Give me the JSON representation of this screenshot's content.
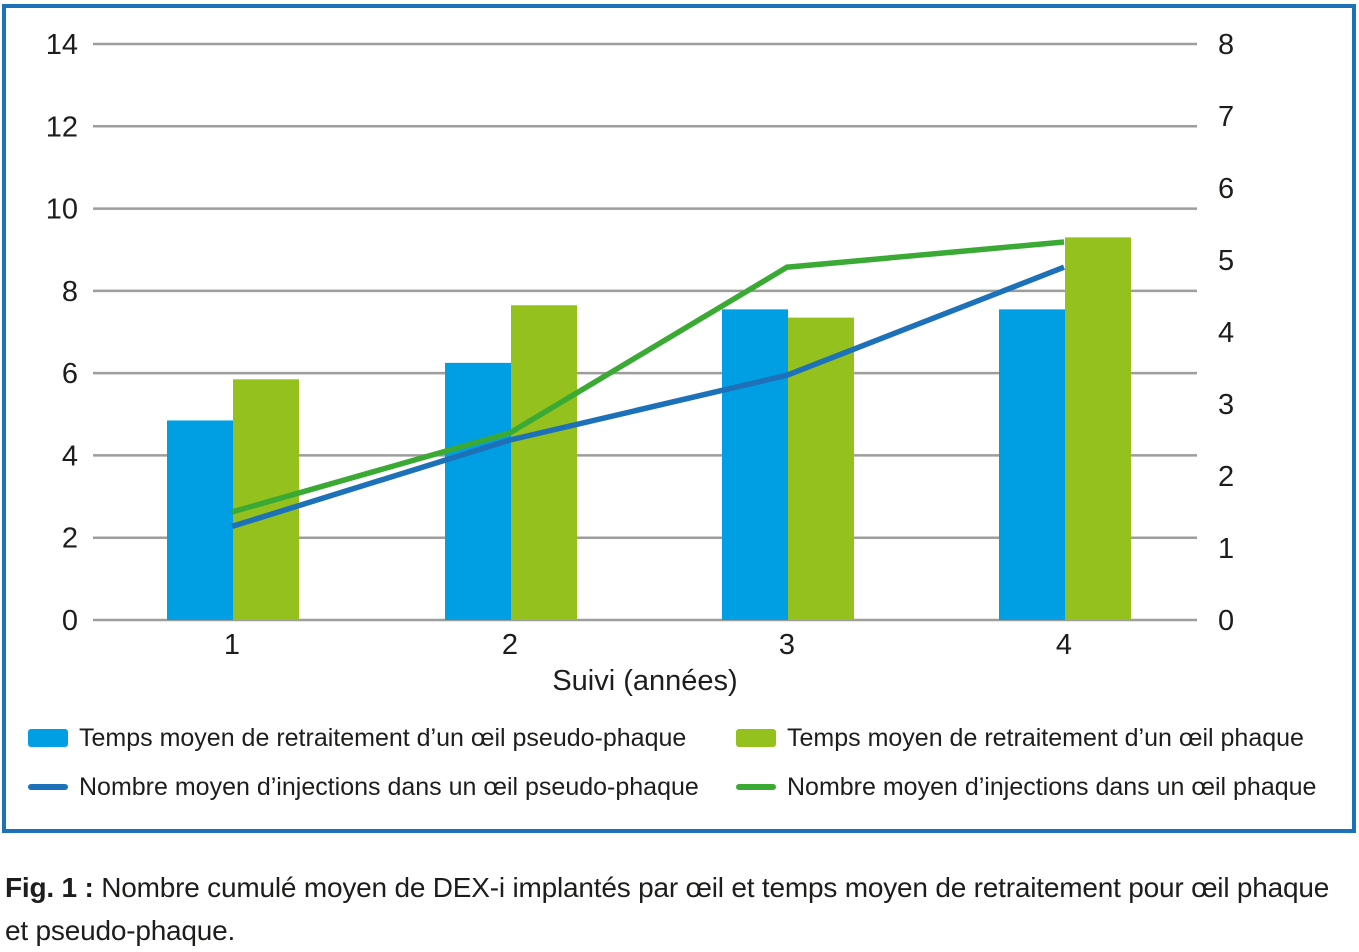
{
  "chart_data": {
    "type": "bar",
    "subtype": "combo-bar-line-dual-axis",
    "categories": [
      "1",
      "2",
      "3",
      "4"
    ],
    "xlabel": "Suivi (années)",
    "bar_series": [
      {
        "name": "Temps moyen de retraitement d’un œil pseudo-phaque",
        "axis": "left",
        "color": "#009FE3",
        "values": [
          4.85,
          6.25,
          7.55,
          7.55
        ]
      },
      {
        "name": "Temps moyen de retraitement d’un œil phaque",
        "axis": "left",
        "color": "#95C11F",
        "values": [
          5.85,
          7.65,
          7.35,
          9.3
        ]
      }
    ],
    "line_series": [
      {
        "name": "Nombre moyen d’injections dans un œil pseudo-phaque",
        "axis": "right",
        "color": "#1D71B8",
        "values": [
          1.3,
          2.5,
          3.4,
          4.9
        ]
      },
      {
        "name": "Nombre moyen d’injections dans un œil phaque",
        "axis": "right",
        "color": "#3AAA35",
        "values": [
          1.5,
          2.6,
          4.9,
          5.25
        ]
      }
    ],
    "left_axis": {
      "min": 0,
      "max": 14,
      "ticks": [
        0,
        2,
        4,
        6,
        8,
        10,
        12,
        14
      ]
    },
    "right_axis": {
      "min": 0,
      "max": 8,
      "ticks": [
        0,
        1,
        2,
        3,
        4,
        5,
        6,
        7,
        8
      ]
    },
    "grid": true,
    "legend_position": "bottom"
  },
  "colors": {
    "grid": "#9D9D9C",
    "text": "#1D1D1B",
    "panel_border": "#1D71B8"
  },
  "caption": {
    "prefix": "Fig. 1 :",
    "text": "Nombre cumulé moyen de DEX-i implantés par œil et temps moyen de retraitement pour œil phaque et pseudo-phaque."
  }
}
